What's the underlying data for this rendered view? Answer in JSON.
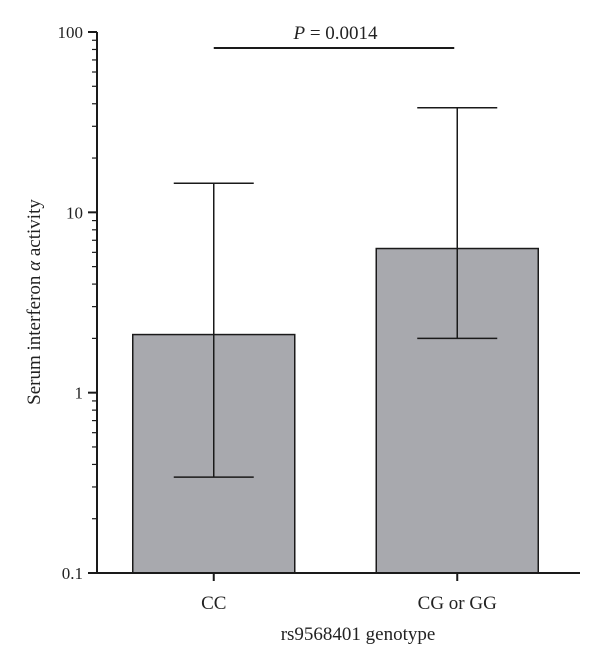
{
  "chart_data": {
    "type": "bar",
    "scale": "log",
    "categories": [
      "CC",
      "CG or GG"
    ],
    "values": [
      2.1,
      6.3
    ],
    "error_bars": [
      {
        "lower": 0.34,
        "upper": 14.5
      },
      {
        "lower": 2.0,
        "upper": 38
      }
    ],
    "ylim": [
      0.1,
      100
    ],
    "yticks": [
      0.1,
      1,
      10,
      100
    ],
    "ytick_labels": [
      "0.1",
      "1",
      "10",
      "100"
    ],
    "ylabel_prefix": "Serum interferon ",
    "ylabel_symbol": "α",
    "ylabel_suffix": " activity",
    "xlabel": "rs9568401 genotype",
    "annotation": {
      "p_symbol": "P",
      "p_text": " = 0.0014"
    },
    "colors": {
      "bar_fill": "#a8a9ae",
      "bar_stroke": "#1a1a1a",
      "axis": "#1a1a1a"
    },
    "grid": false
  }
}
